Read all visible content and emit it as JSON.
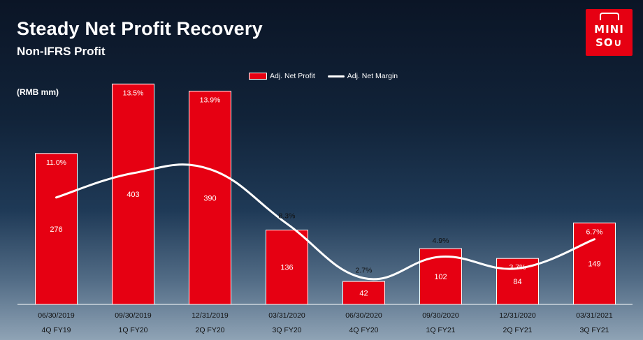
{
  "slide": {
    "title": "Steady Net Profit Recovery",
    "subtitle": "Non-IFRS Profit",
    "unit": "(RMB mm)"
  },
  "logo": {
    "line1": "MINI",
    "line2": "SO∪",
    "color": "#e60012"
  },
  "legend": {
    "bar_label": "Adj. Net Profit",
    "line_label": "Adj. Net Margin"
  },
  "chart_data": {
    "type": "bar",
    "title": "Steady Net Profit Recovery",
    "subtitle": "Non-IFRS Profit",
    "ylabel": "(RMB mm)",
    "categories": [
      "06/30/2019",
      "09/30/2019",
      "12/31/2019",
      "03/31/2020",
      "06/30/2020",
      "09/30/2020",
      "12/31/2020",
      "03/31/2021"
    ],
    "fiscal_labels": [
      "4Q FY19",
      "1Q FY20",
      "2Q FY20",
      "3Q FY20",
      "4Q FY20",
      "1Q FY21",
      "2Q FY21",
      "3Q FY21"
    ],
    "ylim": [
      0,
      480
    ],
    "series": [
      {
        "name": "Adj. Net Profit",
        "type": "bar",
        "values": [
          276,
          403,
          390,
          136,
          42,
          102,
          84,
          149
        ],
        "labels": [
          "276",
          "403",
          "390",
          "136",
          "42",
          "102",
          "84",
          "149"
        ],
        "color": "#e60012"
      },
      {
        "name": "Adj. Net Margin",
        "type": "line",
        "values": [
          11.0,
          13.5,
          13.9,
          8.3,
          2.7,
          4.9,
          3.7,
          6.7
        ],
        "labels": [
          "11.0%",
          "13.5%",
          "13.9%",
          "8.3%",
          "2.7%",
          "4.9%",
          "3.7%",
          "6.7%"
        ],
        "color": "#ffffff",
        "ylim": [
          0,
          27
        ]
      }
    ],
    "grid": false,
    "legend_position": "top-center"
  }
}
